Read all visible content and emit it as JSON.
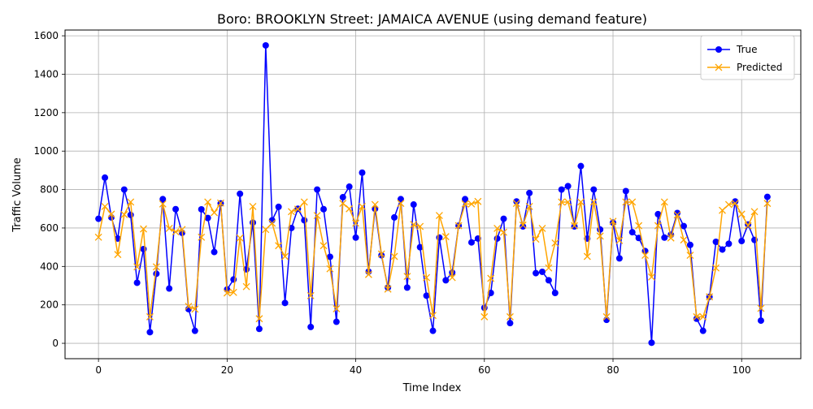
{
  "chart_data": {
    "type": "line",
    "title": "Boro: BROOKLYN Street: JAMAICA AVENUE (using demand feature)",
    "xlabel": "Time Index",
    "ylabel": "Traffic Volume",
    "xlim": [
      -5.2,
      109.2
    ],
    "ylim": [
      -80,
      1630
    ],
    "xticks": [
      0,
      20,
      40,
      60,
      80,
      100
    ],
    "yticks": [
      0,
      200,
      400,
      600,
      800,
      1000,
      1200,
      1400,
      1600
    ],
    "grid": true,
    "legend_position": "top-right",
    "series": [
      {
        "name": "True",
        "color": "#0000ff",
        "marker": "circle",
        "values": [
          648,
          862,
          655,
          545,
          800,
          668,
          315,
          490,
          58,
          362,
          750,
          285,
          698,
          575,
          178,
          65,
          697,
          652,
          475,
          728,
          280,
          332,
          778,
          385,
          628,
          75,
          1550,
          640,
          710,
          210,
          600,
          700,
          640,
          85,
          800,
          698,
          450,
          112,
          760,
          815,
          550,
          888,
          373,
          700,
          458,
          290,
          655,
          750,
          290,
          722,
          500,
          248,
          65,
          550,
          328,
          368,
          612,
          750,
          525,
          545,
          185,
          262,
          545,
          648,
          105,
          738,
          608,
          782,
          365,
          372,
          328,
          262,
          800,
          818,
          608,
          922,
          545,
          800,
          592,
          122,
          628,
          442,
          792,
          578,
          548,
          480,
          3,
          672,
          550,
          565,
          678,
          610,
          512,
          128,
          65,
          242,
          528,
          488,
          518,
          738,
          532,
          618,
          538,
          118,
          762
        ]
      },
      {
        "name": "Predicted",
        "color": "#ffa500",
        "marker": "x",
        "values": [
          552,
          712,
          672,
          462,
          670,
          735,
          398,
          595,
          138,
          398,
          725,
          598,
          580,
          592,
          192,
          178,
          552,
          735,
          680,
          730,
          262,
          265,
          548,
          295,
          712,
          128,
          592,
          625,
          508,
          452,
          685,
          698,
          735,
          248,
          665,
          508,
          388,
          180,
          728,
          700,
          625,
          712,
          358,
          722,
          465,
          282,
          452,
          728,
          348,
          618,
          608,
          342,
          145,
          665,
          555,
          342,
          612,
          725,
          725,
          738,
          138,
          338,
          598,
          578,
          138,
          728,
          615,
          712,
          542,
          598,
          392,
          522,
          735,
          735,
          612,
          735,
          452,
          735,
          558,
          138,
          635,
          535,
          735,
          735,
          612,
          458,
          345,
          612,
          735,
          548,
          668,
          538,
          458,
          138,
          138,
          242,
          392,
          692,
          722,
          728,
          672,
          612,
          685,
          182,
          728
        ]
      }
    ]
  }
}
